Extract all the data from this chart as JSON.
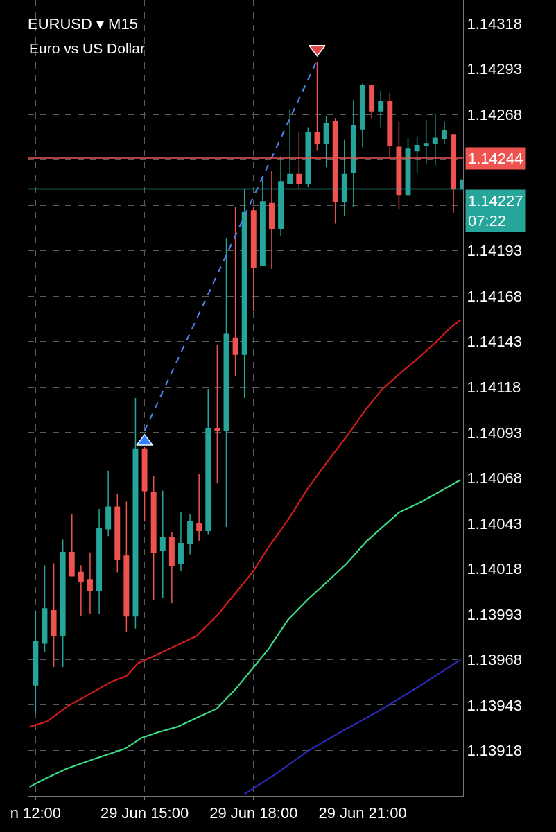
{
  "chart_data": {
    "type": "candlestick",
    "title": "EURUSD ▾ M15",
    "subtitle": "Euro vs US Dollar",
    "x": [
      "--06-29T12:00",
      "--06-29T12:15",
      "--06-29T12:30",
      "--06-29T12:45",
      "--06-29T13:00",
      "--06-29T13:15",
      "--06-29T13:30",
      "--06-29T13:45",
      "--06-29T14:00",
      "--06-29T14:15",
      "--06-29T14:30",
      "--06-29T14:45",
      "--06-29T15:00",
      "--06-29T15:15",
      "--06-29T15:30",
      "--06-29T15:45",
      "--06-29T16:00",
      "--06-29T16:15",
      "--06-29T16:30",
      "--06-29T16:45",
      "--06-29T17:00",
      "--06-29T17:15",
      "--06-29T17:30",
      "--06-29T17:45",
      "--06-29T18:00",
      "--06-29T18:15",
      "--06-29T18:30",
      "--06-29T18:45",
      "--06-29T19:00",
      "--06-29T19:15",
      "--06-29T19:30",
      "--06-29T19:45",
      "--06-29T20:00",
      "--06-29T20:15",
      "--06-29T20:30",
      "--06-29T20:45",
      "--06-29T21:00",
      "--06-29T21:15",
      "--06-29T21:30",
      "--06-29T21:45",
      "--06-29T22:00",
      "--06-29T22:15",
      "--06-29T22:30",
      "--06-29T22:45",
      "--06-29T23:00",
      "--06-29T23:15",
      "--06-29T23:30",
      "--06-29T23:45"
    ],
    "ohlc": [
      [
        1.13954,
        1.13995,
        1.13939,
        1.13978
      ],
      [
        1.13977,
        1.1402,
        1.13972,
        1.13996
      ],
      [
        1.13995,
        1.14021,
        1.13964,
        1.13981
      ],
      [
        1.13981,
        1.14034,
        1.13964,
        1.14027
      ],
      [
        1.14027,
        1.14048,
        1.14014,
        1.14014
      ],
      [
        1.14016,
        1.1402,
        1.13992,
        1.14011
      ],
      [
        1.14012,
        1.14027,
        1.13993,
        1.14006
      ],
      [
        1.14006,
        1.14051,
        1.13993,
        1.1404
      ],
      [
        1.1404,
        1.14072,
        1.14036,
        1.14052
      ],
      [
        1.14052,
        1.14059,
        1.14016,
        1.14023
      ],
      [
        1.14025,
        1.14055,
        1.13983,
        1.13992
      ],
      [
        1.13992,
        1.14112,
        1.13985,
        1.14084
      ],
      [
        1.14084,
        1.14085,
        1.14044,
        1.14061
      ],
      [
        1.1406,
        1.14069,
        1.14001,
        1.14027
      ],
      [
        1.14028,
        1.14061,
        1.14002,
        1.14035
      ],
      [
        1.14035,
        1.14038,
        1.13999,
        1.1402
      ],
      [
        1.14021,
        1.14049,
        1.14017,
        1.14032
      ],
      [
        1.14032,
        1.14048,
        1.14026,
        1.14044
      ],
      [
        1.14043,
        1.1407,
        1.14033,
        1.14039
      ],
      [
        1.14039,
        1.14117,
        1.14037,
        1.14095
      ],
      [
        1.14095,
        1.14141,
        1.14065,
        1.14094
      ],
      [
        1.14094,
        1.142,
        1.14041,
        1.14147
      ],
      [
        1.14145,
        1.14217,
        1.14124,
        1.14136
      ],
      [
        1.14136,
        1.14227,
        1.14112,
        1.14214
      ],
      [
        1.14215,
        1.14217,
        1.1416,
        1.14184
      ],
      [
        1.14185,
        1.14234,
        1.14185,
        1.1422
      ],
      [
        1.14219,
        1.14237,
        1.14183,
        1.14205
      ],
      [
        1.14205,
        1.14245,
        1.14201,
        1.14231
      ],
      [
        1.1423,
        1.14271,
        1.1423,
        1.14235
      ],
      [
        1.14235,
        1.14258,
        1.14227,
        1.1423
      ],
      [
        1.1423,
        1.14261,
        1.14228,
        1.14258
      ],
      [
        1.14258,
        1.14297,
        1.14248,
        1.14252
      ],
      [
        1.14252,
        1.14267,
        1.14239,
        1.14263
      ],
      [
        1.14264,
        1.14266,
        1.14208,
        1.1422
      ],
      [
        1.1422,
        1.14254,
        1.14212,
        1.14235
      ],
      [
        1.14236,
        1.14276,
        1.14217,
        1.14262
      ],
      [
        1.1426,
        1.14285,
        1.1425,
        1.14284
      ],
      [
        1.14284,
        1.14284,
        1.14266,
        1.1427
      ],
      [
        1.1427,
        1.14281,
        1.14261,
        1.14275
      ],
      [
        1.14275,
        1.1428,
        1.14244,
        1.14251
      ],
      [
        1.1425,
        1.14264,
        1.14216,
        1.14224
      ],
      [
        1.14224,
        1.14255,
        1.14223,
        1.14249
      ],
      [
        1.14248,
        1.14256,
        1.14236,
        1.14251
      ],
      [
        1.14251,
        1.14265,
        1.14241,
        1.14252
      ],
      [
        1.14252,
        1.14268,
        1.1424,
        1.14255
      ],
      [
        1.14255,
        1.14264,
        1.14252,
        1.14259
      ],
      [
        1.14257,
        1.14257,
        1.14214,
        1.14227
      ],
      [
        1.14227,
        1.14232,
        1.14227,
        1.14232
      ]
    ],
    "colors": [
      "#26a69a",
      "#26a69a",
      "#ef5350",
      "#26a69a",
      "#ef5350",
      "#ef5350",
      "#ef5350",
      "#26a69a",
      "#26a69a",
      "#ef5350",
      "#ef5350",
      "#26a69a",
      "#ef5350",
      "#ef5350",
      "#26a69a",
      "#ef5350",
      "#26a69a",
      "#26a69a",
      "#ef5350",
      "#26a69a",
      "#ef5350",
      "#26a69a",
      "#ef5350",
      "#26a69a",
      "#ef5350",
      "#26a69a",
      "#ef5350",
      "#26a69a",
      "#26a69a",
      "#ef5350",
      "#26a69a",
      "#ef5350",
      "#26a69a",
      "#ef5350",
      "#26a69a",
      "#26a69a",
      "#26a69a",
      "#ef5350",
      "#26a69a",
      "#ef5350",
      "#ef5350",
      "#26a69a",
      "#26a69a",
      "#26a69a",
      "#26a69a",
      "#26a69a",
      "#ef5350",
      "#26a69a"
    ],
    "series": [
      {
        "type": "line",
        "color": "#d01c1c",
        "x": [
          "--06-29T11:50",
          "--06-29T12:19",
          "--06-29T12:51",
          "--06-29T13:34",
          "--06-29T14:06",
          "--06-29T14:30",
          "--06-29T14:49",
          "--06-29T15:22",
          "--06-29T15:54",
          "--06-29T16:26",
          "--06-29T16:59",
          "--06-29T17:31",
          "--06-29T17:58",
          "--06-29T18:25",
          "--06-29T18:57",
          "--06-29T19:29",
          "--06-29T20:02",
          "--06-29T20:34",
          "--06-29T21:06",
          "--06-29T21:33",
          "--06-29T22:00",
          "--06-29T22:32",
          "--06-29T23:05",
          "--06-29T23:26",
          "--06-29T23:42"
        ],
        "values": [
          1.13931,
          1.13934,
          1.13942,
          1.1395,
          1.13956,
          1.13959,
          1.13966,
          1.13971,
          1.13976,
          1.13981,
          1.13992,
          1.14005,
          1.14016,
          1.1403,
          1.14045,
          1.14062,
          1.14077,
          1.14091,
          1.14106,
          1.14117,
          1.14125,
          1.14134,
          1.14144,
          1.14151,
          1.14155
        ]
      },
      {
        "type": "line",
        "color": "#3ddc84",
        "x": [
          "--06-29T11:50",
          "--06-29T12:19",
          "--06-29T12:51",
          "--06-29T13:34",
          "--06-29T14:28",
          "--06-29T14:55",
          "--06-29T15:22",
          "--06-29T15:54",
          "--06-29T16:26",
          "--06-29T16:59",
          "--06-29T17:31",
          "--06-29T17:58",
          "--06-29T18:25",
          "--06-29T18:57",
          "--06-29T19:29",
          "--06-29T20:02",
          "--06-29T20:34",
          "--06-29T21:06",
          "--06-29T21:33",
          "--06-29T22:00",
          "--06-29T22:32",
          "--06-29T23:05",
          "--06-29T23:42"
        ],
        "values": [
          1.13898,
          1.13903,
          1.13908,
          1.13913,
          1.13919,
          1.13925,
          1.13928,
          1.13931,
          1.13936,
          1.13941,
          1.13952,
          1.13963,
          1.13974,
          1.1399,
          1.14001,
          1.14011,
          1.14021,
          1.14033,
          1.14041,
          1.14049,
          1.14054,
          1.1406,
          1.14067
        ]
      },
      {
        "type": "line",
        "color": "#2a2ab8",
        "x": [
          "--06-29T17:45",
          "--06-29T18:36",
          "--06-29T19:31",
          "--06-29T20:23",
          "--06-29T21:28",
          "--06-29T22:32",
          "--06-29T23:42"
        ],
        "values": [
          1.13894,
          1.13905,
          1.13918,
          1.13928,
          1.1394,
          1.13953,
          1.13968
        ]
      },
      {
        "type": "line",
        "color": "#4f7fe8",
        "line_style": "dashed",
        "x": [
          "--06-29T15:00",
          "--06-29T19:45"
        ],
        "values": [
          1.14094,
          1.14298
        ]
      },
      {
        "type": "scatter",
        "color": "#2f80ff",
        "marker": "triangle",
        "x": [
          "--06-29T15:00"
        ],
        "values": [
          1.14088
        ]
      },
      {
        "type": "scatter",
        "color": "#e04848",
        "marker": "triangle-down",
        "x": [
          "--06-29T19:45"
        ],
        "values": [
          1.14304
        ]
      }
    ],
    "ref_lines": [
      {
        "axis": "y",
        "value": 1.14244,
        "label": "1.14244",
        "color": "#ef5350"
      },
      {
        "axis": "y",
        "value": 1.14227,
        "label": "1.14227\n07:22",
        "color": "#26a69a"
      }
    ],
    "xlim": [
      "--06-29T11:47",
      "--06-29T23:46"
    ],
    "xticks": [
      {
        "value": "--06-29T12:00",
        "label": "n 12:00"
      },
      {
        "value": "--06-29T15:00",
        "label": "29 Jun 15:00"
      },
      {
        "value": "--06-29T18:00",
        "label": "29 Jun 18:00"
      },
      {
        "value": "--06-29T21:00",
        "label": "29 Jun 21:00"
      }
    ],
    "ylim": [
      1.13893,
      1.14331
    ],
    "yticks": [
      1.14318,
      1.14293,
      1.14268,
      {
        "value": 1.14243,
        "label": null
      },
      {
        "value": 1.14218,
        "label": null
      },
      1.14193,
      1.14168,
      1.14143,
      1.14118,
      1.14093,
      1.14068,
      1.14043,
      1.14018,
      1.13993,
      1.13968,
      1.13943,
      1.13918
    ],
    "grid": true
  }
}
